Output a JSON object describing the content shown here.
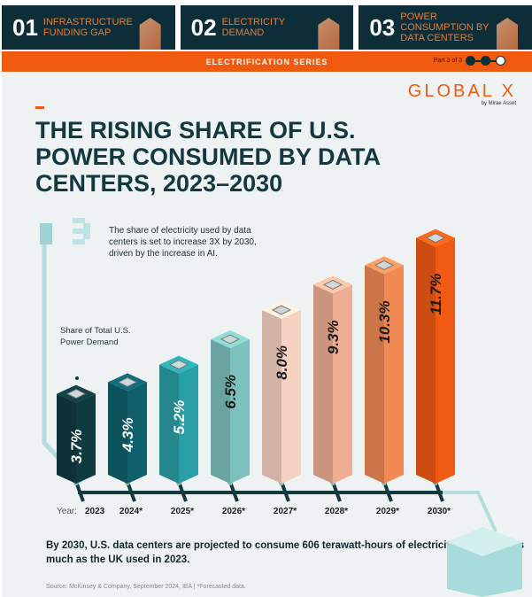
{
  "tabs": [
    {
      "num": "01",
      "label": "Infrastructure Funding Gap"
    },
    {
      "num": "02",
      "label": "Electricity Demand"
    },
    {
      "num": "03",
      "label": "Power Consumption by Data Centers"
    }
  ],
  "banner": {
    "title": "ELECTRIFICATION SERIES",
    "part": "Part 3 of 3"
  },
  "logo": {
    "name": "GLOBAL X",
    "sub": "by Mirae Asset"
  },
  "chart_data": {
    "type": "bar",
    "title": "THE RISING SHARE OF U.S. POWER CONSUMED BY DATA CENTERS, 2023–2030",
    "ylabel": "Share of Total U.S. Power Demand",
    "xlabel": "Year:",
    "categories": [
      "2023",
      "2024*",
      "2025*",
      "2026*",
      "2027*",
      "2028*",
      "2029*",
      "2030*"
    ],
    "values": [
      3.7,
      4.3,
      5.2,
      6.5,
      8.0,
      9.3,
      10.3,
      11.7
    ],
    "unit": "%",
    "colors": [
      "#0f3a3f",
      "#0f606a",
      "#2a9fa5",
      "#7dc1bd",
      "#f7d2c2",
      "#efae93",
      "#f08a55",
      "#f05a14"
    ],
    "ylim": [
      0,
      12
    ]
  },
  "note": "The share of electricity used by data centers is set to increase 3X by 2030, driven by the increase in AI.",
  "bottom_text": "By 2030, U.S. data centers are projected to consume 606 terawatt-hours of electricity—nearly 2x as much as the UK used in 2023.",
  "source": "Source: McKinsey & Company, September 2024, IEA | *Forecasted data."
}
